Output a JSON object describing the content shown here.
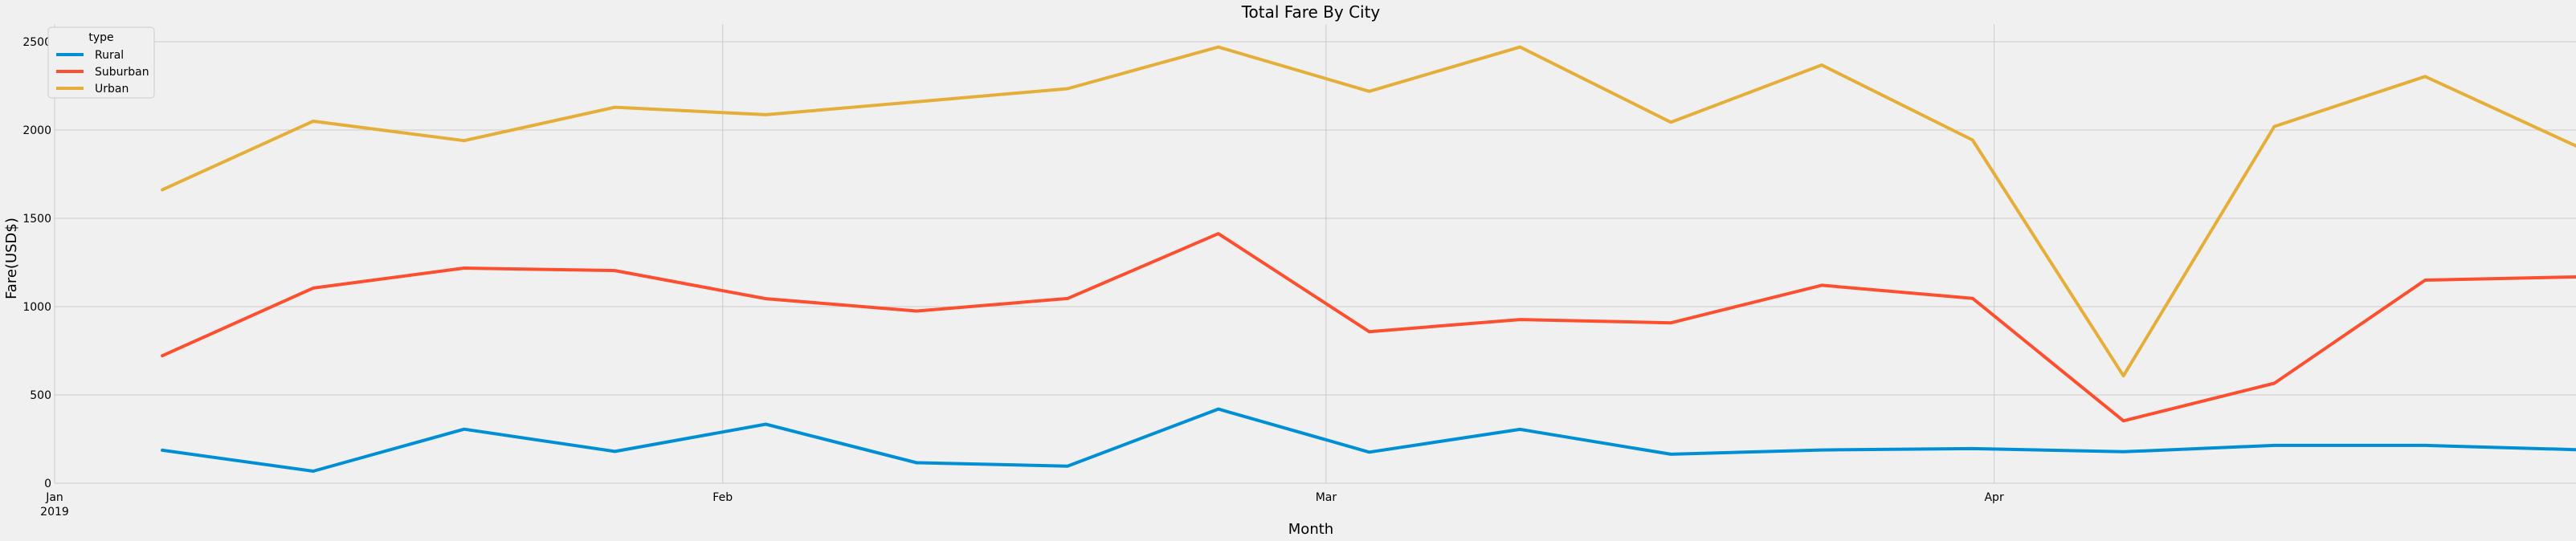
{
  "chart_data": {
    "type": "line",
    "title": "Total Fare By City",
    "xlabel": "Month",
    "ylabel": "Fare(USD$)",
    "ylim": [
      0,
      2600
    ],
    "yticks": [
      0,
      500,
      1000,
      1500,
      2000,
      2500
    ],
    "x": [
      "2019-01-06",
      "2019-01-13",
      "2019-01-20",
      "2019-01-27",
      "2019-02-03",
      "2019-02-10",
      "2019-02-17",
      "2019-02-24",
      "2019-03-03",
      "2019-03-10",
      "2019-03-17",
      "2019-03-24",
      "2019-03-31",
      "2019-04-07",
      "2019-04-14",
      "2019-04-21",
      "2019-04-28"
    ],
    "xticks": [
      {
        "date": "2019-01-01",
        "label": "Jan",
        "sublabel": "2019"
      },
      {
        "date": "2019-02-01",
        "label": "Feb",
        "sublabel": ""
      },
      {
        "date": "2019-03-01",
        "label": "Mar",
        "sublabel": ""
      },
      {
        "date": "2019-04-01",
        "label": "Apr",
        "sublabel": ""
      }
    ],
    "grid": true,
    "legend": {
      "title": "type",
      "placement": "top-left"
    },
    "series": [
      {
        "name": "Rural",
        "color": "#008fd5",
        "values": [
          187,
          68,
          306,
          180,
          334,
          116,
          97,
          420,
          176,
          305,
          164,
          188,
          196,
          178,
          214,
          214,
          190
        ]
      },
      {
        "name": "Suburban",
        "color": "#fc4f30",
        "values": [
          722,
          1105,
          1218,
          1204,
          1045,
          975,
          1046,
          1413,
          858,
          927,
          908,
          1121,
          1047,
          353,
          566,
          1150,
          1168
        ]
      },
      {
        "name": "Urban",
        "color": "#e5ae38",
        "values": [
          1662,
          2050,
          1940,
          2129,
          2087,
          2160,
          2234,
          2470,
          2219,
          2470,
          2044,
          2368,
          1943,
          608,
          2020,
          2303,
          1910
        ]
      }
    ]
  }
}
